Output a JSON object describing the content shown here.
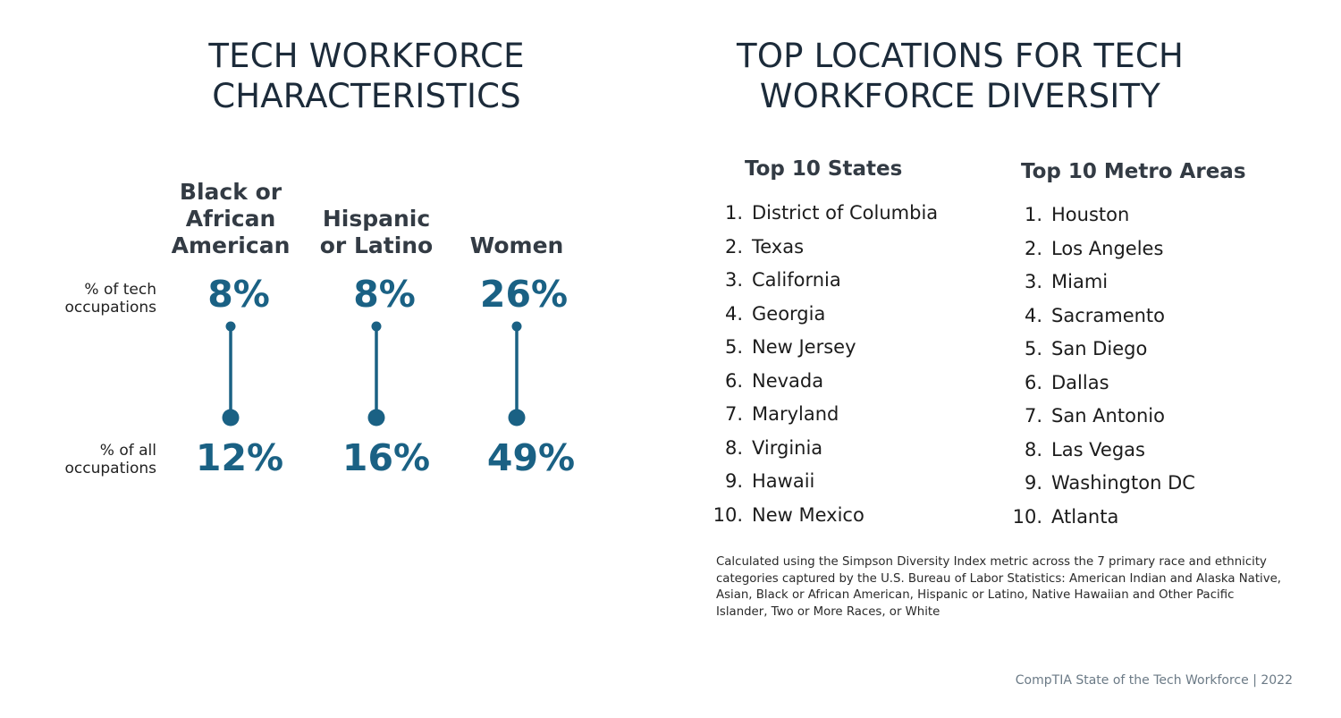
{
  "left_title": [
    "TECH WORKFORCE",
    "CHARACTERISTICS"
  ],
  "right_title": [
    "TOP LOCATIONS FOR TECH",
    "WORKFORCE DIVERSITY"
  ],
  "row_labels": {
    "tech": [
      "% of tech",
      "occupations"
    ],
    "all": [
      "% of all",
      "occupations"
    ]
  },
  "colors": {
    "accent": "#1a6184",
    "title": "#1c2b3a",
    "header": "#333b44"
  },
  "chart_data": {
    "type": "dumbbell",
    "categories": [
      {
        "name_lines": [
          "Black or",
          "African",
          "American"
        ],
        "tech": 8,
        "all": 12,
        "tech_label": "8%",
        "all_label": "12%"
      },
      {
        "name_lines": [
          "Hispanic",
          "or Latino"
        ],
        "tech": 8,
        "all": 16,
        "tech_label": "8%",
        "all_label": "16%"
      },
      {
        "name_lines": [
          "Women"
        ],
        "tech": 26,
        "all": 49,
        "tech_label": "26%",
        "all_label": "49%"
      }
    ]
  },
  "states": {
    "header": "Top 10 States",
    "items": [
      {
        "num": "1.",
        "name": "District of Columbia"
      },
      {
        "num": "2.",
        "name": "Texas"
      },
      {
        "num": "3.",
        "name": "California"
      },
      {
        "num": "4.",
        "name": "Georgia"
      },
      {
        "num": "5.",
        "name": "New Jersey"
      },
      {
        "num": "6.",
        "name": "Nevada"
      },
      {
        "num": "7.",
        "name": "Maryland"
      },
      {
        "num": "8.",
        "name": "Virginia"
      },
      {
        "num": "9.",
        "name": "Hawaii"
      },
      {
        "num": "10.",
        "name": "New Mexico"
      }
    ]
  },
  "metros": {
    "header": "Top 10 Metro Areas",
    "items": [
      {
        "num": "1.",
        "name": "Houston"
      },
      {
        "num": "2.",
        "name": "Los Angeles"
      },
      {
        "num": "3.",
        "name": "Miami"
      },
      {
        "num": "4.",
        "name": "Sacramento"
      },
      {
        "num": "5.",
        "name": "San Diego"
      },
      {
        "num": "6.",
        "name": "Dallas"
      },
      {
        "num": "7.",
        "name": "San Antonio"
      },
      {
        "num": "8.",
        "name": "Las Vegas"
      },
      {
        "num": "9.",
        "name": "Washington DC"
      },
      {
        "num": "10.",
        "name": "Atlanta"
      }
    ]
  },
  "footnote": "Calculated using the Simpson Diversity Index metric across the 7 primary race and ethnicity categories captured by the U.S. Bureau of Labor Statistics: American Indian and Alaska Native, Asian, Black or African American, Hispanic or Latino, Native Hawaiian and Other Pacific Islander, Two or More Races, or White",
  "source": "CompTIA State of the Tech Workforce | 2022"
}
